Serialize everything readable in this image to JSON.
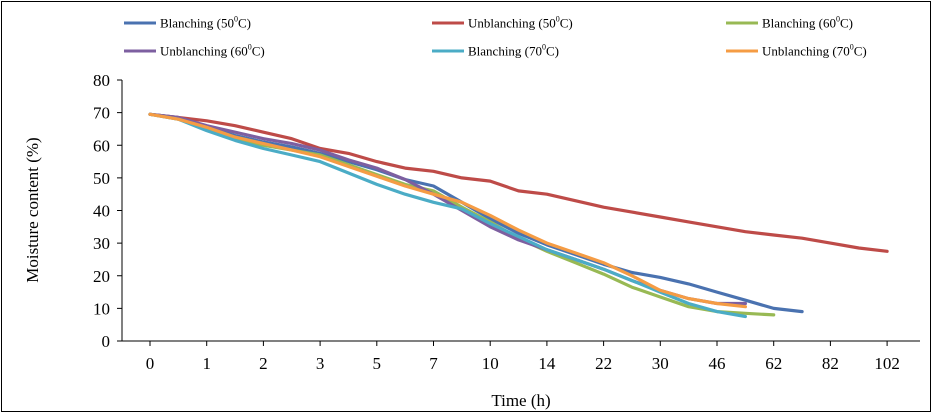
{
  "chart_data": {
    "type": "line",
    "xlabel": "Time (h)",
    "ylabel": "Moisture content (%)",
    "ylim": [
      0,
      80
    ],
    "yticks": [
      0,
      10,
      20,
      30,
      40,
      50,
      60,
      70,
      80
    ],
    "x_tick_labels": [
      "0",
      "1",
      "2",
      "3",
      "5",
      "7",
      "10",
      "14",
      "22",
      "30",
      "46",
      "62",
      "82",
      "102"
    ],
    "legend_position": "top",
    "grid": false,
    "series": [
      {
        "name": "Blanching (50°C)",
        "color": "#4A72B0",
        "x": [
          0,
          0.5,
          1,
          1.5,
          2,
          2.5,
          3,
          3.5,
          4,
          4.5,
          5,
          5.5,
          6,
          6.5,
          7,
          7.5,
          8,
          8.5,
          9,
          9.5,
          10,
          10.5,
          11,
          11.5,
          12,
          12.5,
          13
        ],
        "values": [
          69.5,
          68.5,
          65.5,
          63.0,
          61.0,
          59.5,
          57.5,
          55.0,
          52.5,
          49.5,
          47.5,
          42.5,
          37.5,
          33.0,
          29.5,
          26.5,
          23.5,
          21.0,
          19.5,
          17.5,
          15.0,
          12.5,
          10.0,
          9.0,
          null,
          null,
          null
        ]
      },
      {
        "name": "Unblanching (50°C)",
        "color": "#BE4B48",
        "x": [
          0,
          0.5,
          1,
          1.5,
          2,
          2.5,
          3,
          3.5,
          4,
          4.5,
          5,
          5.5,
          6,
          6.5,
          7,
          7.5,
          8,
          8.5,
          9,
          9.5,
          10,
          10.5,
          11,
          11.5,
          12,
          12.5,
          13
        ],
        "values": [
          69.5,
          68.5,
          67.5,
          66.0,
          64.0,
          62.0,
          59.0,
          57.5,
          55.0,
          53.0,
          52.0,
          50.0,
          49.0,
          46.0,
          45.0,
          43.0,
          41.0,
          39.5,
          38.0,
          36.5,
          35.0,
          33.5,
          32.5,
          31.5,
          30.0,
          28.5,
          27.5
        ]
      },
      {
        "name": "Blanching (60°C)",
        "color": "#98B954",
        "x": [
          0,
          0.5,
          1,
          1.5,
          2,
          2.5,
          3,
          3.5,
          4,
          4.5,
          5,
          5.5,
          6,
          6.5,
          7,
          7.5,
          8,
          8.5,
          9,
          9.5,
          10,
          10.5,
          11,
          11.5
        ],
        "values": [
          69.5,
          68.0,
          65.0,
          62.0,
          60.0,
          58.5,
          57.0,
          54.0,
          51.0,
          48.0,
          46.0,
          41.0,
          36.5,
          31.5,
          27.5,
          24.0,
          20.5,
          16.5,
          13.5,
          10.5,
          9.0,
          8.5,
          8.0,
          null
        ]
      },
      {
        "name": "Unblanching (60°C)",
        "color": "#7D5FA0",
        "x": [
          0,
          0.5,
          1,
          1.5,
          2,
          2.5,
          3,
          3.5,
          4,
          4.5,
          5,
          5.5,
          6,
          6.5,
          7,
          7.5,
          8,
          8.5,
          9,
          9.5,
          10,
          10.5,
          11,
          11.5
        ],
        "values": [
          69.5,
          68.5,
          66.0,
          64.0,
          62.0,
          60.5,
          58.5,
          55.5,
          53.0,
          49.5,
          45.0,
          40.0,
          35.0,
          31.0,
          28.0,
          25.0,
          22.0,
          18.5,
          15.5,
          13.0,
          11.5,
          11.5,
          null,
          null
        ]
      },
      {
        "name": "Blanching (70°C)",
        "color": "#4BACC6",
        "x": [
          0,
          0.5,
          1,
          1.5,
          2,
          2.5,
          3,
          3.5,
          4,
          4.5,
          5,
          5.5,
          6,
          6.5,
          7,
          7.5,
          8,
          8.5,
          9,
          9.5,
          10,
          10.5
        ],
        "values": [
          69.5,
          68.0,
          64.5,
          61.5,
          59.0,
          57.0,
          55.0,
          51.5,
          48.0,
          45.0,
          42.5,
          40.5,
          36.0,
          32.0,
          28.0,
          25.0,
          22.0,
          18.5,
          15.0,
          11.5,
          9.0,
          7.5
        ]
      },
      {
        "name": "Unblanching (70°C)",
        "color": "#F59C44",
        "x": [
          0,
          0.5,
          1,
          1.5,
          2,
          2.5,
          3,
          3.5,
          4,
          4.5,
          5,
          5.5,
          6,
          6.5,
          7,
          7.5,
          8,
          8.5,
          9,
          9.5,
          10,
          10.5
        ],
        "values": [
          69.5,
          68.0,
          65.5,
          62.5,
          60.5,
          58.5,
          56.5,
          53.5,
          50.5,
          47.5,
          45.0,
          42.5,
          38.5,
          34.0,
          30.0,
          27.0,
          24.0,
          20.0,
          15.5,
          13.0,
          11.5,
          10.5
        ]
      }
    ]
  }
}
